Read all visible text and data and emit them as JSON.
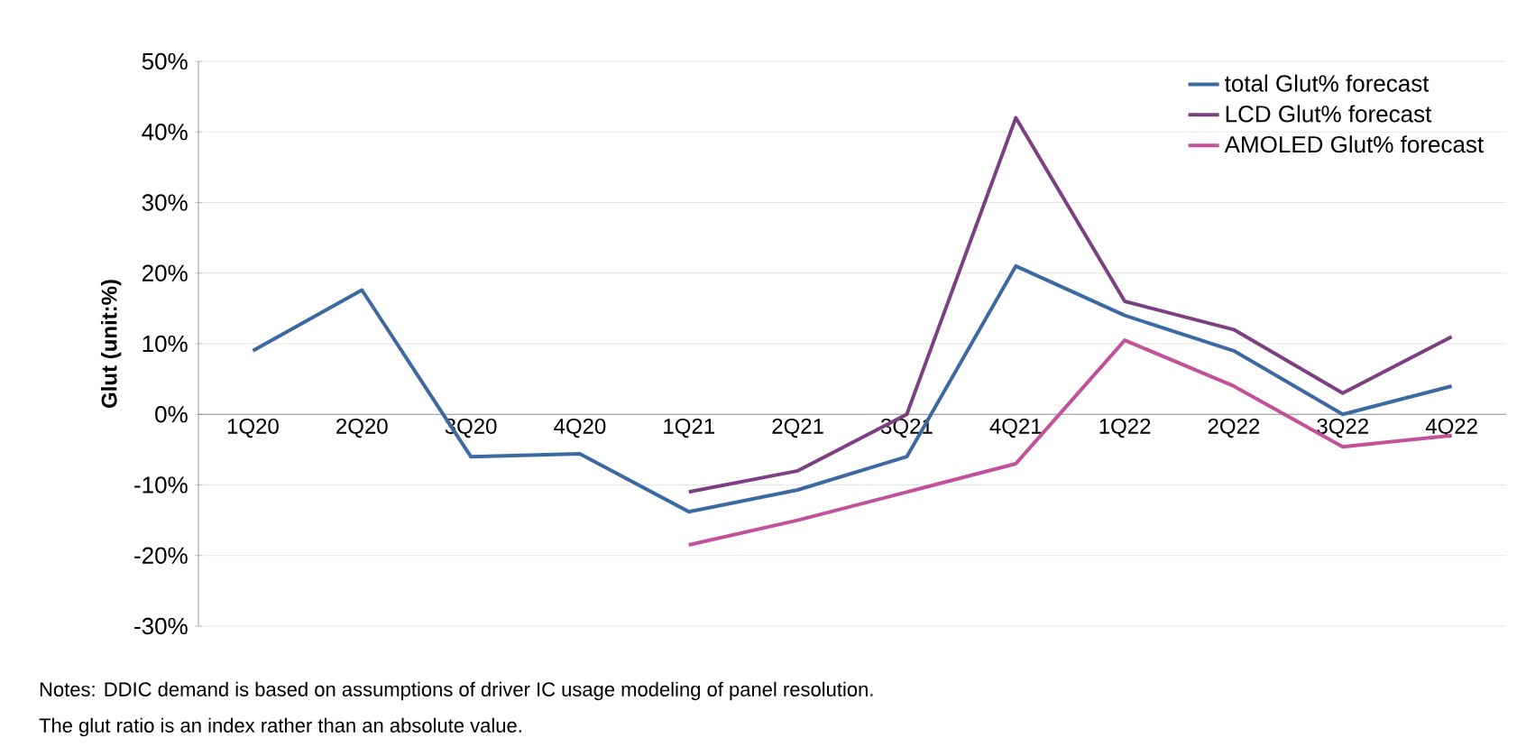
{
  "chart_data": {
    "type": "line",
    "ylabel": "Glut (unit:%)",
    "categories": [
      "1Q20",
      "2Q20",
      "3Q20",
      "4Q20",
      "1Q21",
      "2Q21",
      "3Q21",
      "4Q21",
      "1Q22",
      "2Q22",
      "3Q22",
      "4Q22"
    ],
    "series": [
      {
        "name": "total  Glut% forecast",
        "color": "#3c6aa0",
        "values": [
          9,
          17.6,
          -6,
          -5.6,
          -13.8,
          -10.7,
          -6,
          21,
          14,
          9,
          0,
          4
        ]
      },
      {
        "name": "LCD Glut% forecast",
        "color": "#7b3f82",
        "values": [
          null,
          null,
          null,
          null,
          -11,
          -8,
          0,
          42,
          16,
          12,
          3,
          11
        ]
      },
      {
        "name": "AMOLED Glut% forecast",
        "color": "#c2509a",
        "values": [
          null,
          null,
          null,
          null,
          -18.5,
          -15,
          -11,
          -7,
          10.5,
          4,
          -4.6,
          -3
        ]
      }
    ],
    "ylim": [
      -30,
      50
    ],
    "yticks": [
      {
        "value": -30,
        "label": "-30%"
      },
      {
        "value": -20,
        "label": "-20%"
      },
      {
        "value": -10,
        "label": "-10%"
      },
      {
        "value": 0,
        "label": "0%"
      },
      {
        "value": 10,
        "label": "10%"
      },
      {
        "value": 20,
        "label": "20%"
      },
      {
        "value": 30,
        "label": "30%"
      },
      {
        "value": 40,
        "label": "40%"
      },
      {
        "value": 50,
        "label": "50%"
      }
    ],
    "grid": "y",
    "legend": "top right",
    "marker": "none",
    "line_style": "solid",
    "annotations": [
      "Notes: DDIC demand is based on assumptions of driver IC usage modeling of panel resolution.",
      "The glut ratio is an index rather than an absolute value."
    ]
  }
}
